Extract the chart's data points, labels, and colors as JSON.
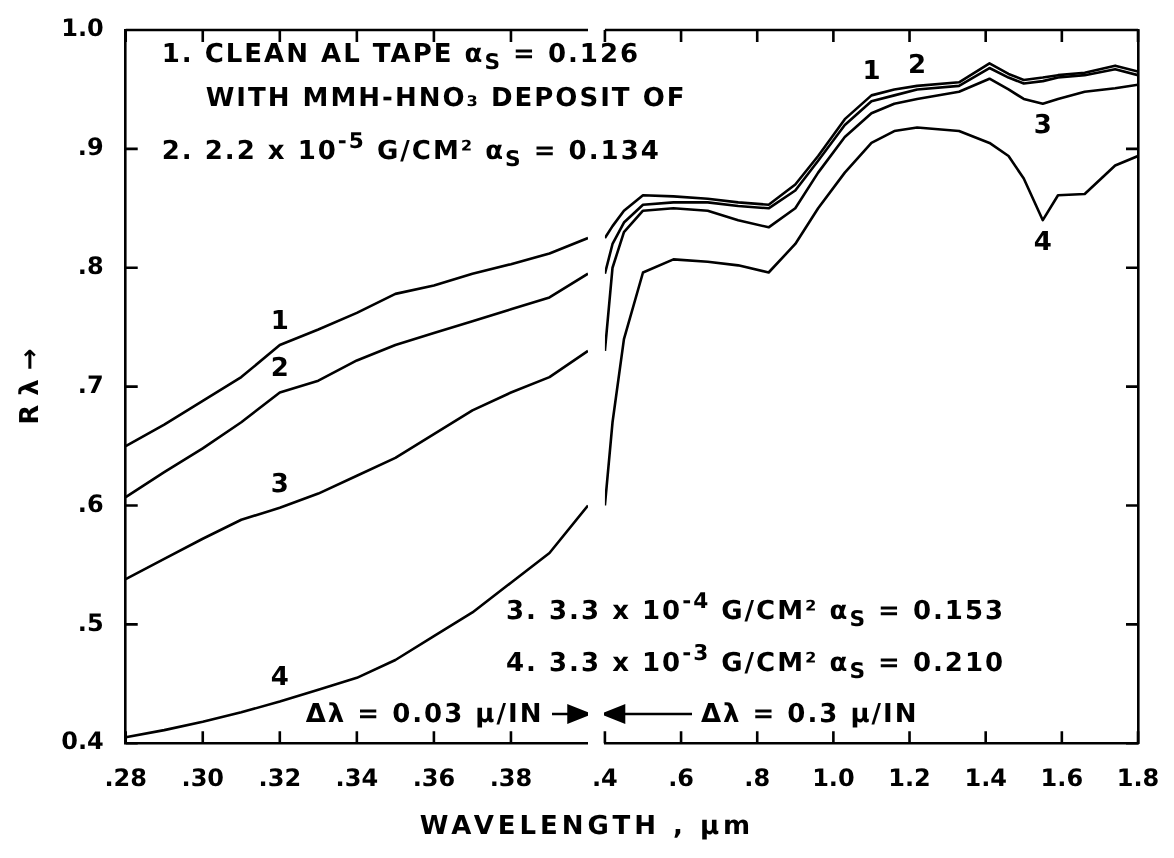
{
  "chart_data": [
    {
      "type": "line",
      "xlabel": "WAVELENGTH , μm",
      "ylabel": "R λ →",
      "x": [
        0.28,
        0.29,
        0.3,
        0.31,
        0.32,
        0.33,
        0.34,
        0.35,
        0.36,
        0.37,
        0.38,
        0.39,
        0.4
      ],
      "series": [
        {
          "name": "1",
          "color": "#000000",
          "values": [
            0.65,
            0.668,
            0.688,
            0.708,
            0.735,
            0.748,
            0.762,
            0.778,
            0.785,
            0.795,
            0.803,
            0.812,
            0.825
          ]
        },
        {
          "name": "2",
          "color": "#000000",
          "values": [
            0.607,
            0.628,
            0.648,
            0.67,
            0.695,
            0.705,
            0.722,
            0.735,
            0.745,
            0.755,
            0.765,
            0.775,
            0.795
          ]
        },
        {
          "name": "3",
          "color": "#000000",
          "values": [
            0.538,
            0.555,
            0.572,
            0.588,
            0.598,
            0.61,
            0.625,
            0.64,
            0.66,
            0.68,
            0.695,
            0.708,
            0.73
          ]
        },
        {
          "name": "4",
          "color": "#000000",
          "values": [
            0.405,
            0.411,
            0.418,
            0.426,
            0.435,
            0.445,
            0.455,
            0.47,
            0.49,
            0.51,
            0.535,
            0.56,
            0.6
          ]
        }
      ],
      "xlim": [
        0.28,
        0.4
      ],
      "xticks": [
        {
          "value": 0.28,
          "label": ".28"
        },
        {
          "value": 0.3,
          "label": ".30"
        },
        {
          "value": 0.32,
          "label": ".32"
        },
        {
          "value": 0.34,
          "label": ".34"
        },
        {
          "value": 0.36,
          "label": ".36"
        },
        {
          "value": 0.38,
          "label": ".38"
        }
      ],
      "ylim": [
        0.4,
        1.0
      ],
      "yticks": [
        {
          "value": 0.4,
          "label": "0.4"
        },
        {
          "value": 0.5,
          "label": ".5"
        },
        {
          "value": 0.6,
          "label": ".6"
        },
        {
          "value": 0.7,
          "label": ".7"
        },
        {
          "value": 0.8,
          "label": ".8"
        },
        {
          "value": 0.9,
          "label": ".9"
        },
        {
          "value": 1.0,
          "label": "1.0"
        }
      ],
      "annotations": [
        "1. CLEAN AL TAPE α$_{S}$ = 0.126",
        "WITH MMH-HNO₃ DEPOSIT OF",
        "2. 2.2 x 10$^{-5}$ G/CM² α$_{S}$ = 0.134",
        "Δλ = 0.03 μ/IN"
      ]
    },
    {
      "type": "line",
      "tick_labels": "x",
      "x": [
        0.4,
        0.42,
        0.45,
        0.5,
        0.58,
        0.67,
        0.75,
        0.83,
        0.9,
        0.96,
        1.03,
        1.1,
        1.16,
        1.22,
        1.33,
        1.41,
        1.46,
        1.5,
        1.55,
        1.59,
        1.66,
        1.74,
        1.8
      ],
      "series": [
        {
          "name": "1",
          "color": "#000000",
          "values": [
            0.825,
            0.835,
            0.848,
            0.861,
            0.86,
            0.858,
            0.855,
            0.853,
            0.87,
            0.894,
            0.925,
            0.945,
            0.95,
            0.953,
            0.956,
            0.972,
            0.963,
            0.958,
            0.96,
            0.962,
            0.964,
            0.97,
            0.965
          ]
        },
        {
          "name": "2",
          "color": "#000000",
          "values": [
            0.795,
            0.82,
            0.838,
            0.853,
            0.855,
            0.855,
            0.852,
            0.85,
            0.865,
            0.89,
            0.92,
            0.94,
            0.945,
            0.95,
            0.953,
            0.968,
            0.96,
            0.955,
            0.957,
            0.96,
            0.962,
            0.967,
            0.962
          ]
        },
        {
          "name": "3",
          "color": "#000000",
          "values": [
            0.73,
            0.8,
            0.83,
            0.848,
            0.85,
            0.848,
            0.84,
            0.834,
            0.85,
            0.88,
            0.91,
            0.93,
            0.938,
            0.942,
            0.948,
            0.959,
            0.95,
            0.942,
            0.938,
            0.942,
            0.948,
            0.951,
            0.954
          ]
        },
        {
          "name": "4",
          "color": "#000000",
          "values": [
            0.6,
            0.67,
            0.74,
            0.796,
            0.807,
            0.805,
            0.802,
            0.796,
            0.82,
            0.85,
            0.88,
            0.905,
            0.915,
            0.918,
            0.915,
            0.905,
            0.894,
            0.875,
            0.84,
            0.861,
            0.862,
            0.886,
            0.894
          ]
        }
      ],
      "xlim": [
        0.4,
        1.8
      ],
      "xticks": [
        {
          "value": 0.4,
          "label": ".4"
        },
        {
          "value": 0.6,
          "label": ".6"
        },
        {
          "value": 0.8,
          "label": ".8"
        },
        {
          "value": 1.0,
          "label": "1.0"
        },
        {
          "value": 1.2,
          "label": "1.2"
        },
        {
          "value": 1.4,
          "label": "1.4"
        },
        {
          "value": 1.6,
          "label": "1.6"
        },
        {
          "value": 1.8,
          "label": "1.8"
        }
      ],
      "ylim": [
        0.4,
        1.0
      ],
      "yticks": [
        {
          "value": 0.4,
          "label": null
        },
        {
          "value": 0.5,
          "label": null
        },
        {
          "value": 0.6,
          "label": null
        },
        {
          "value": 0.7,
          "label": null
        },
        {
          "value": 0.8,
          "label": null
        },
        {
          "value": 0.9,
          "label": null
        },
        {
          "value": 1.0,
          "label": null
        }
      ],
      "annotations": [
        "3. 3.3 x 10$^{-4}$ G/CM² α$_{S}$ = 0.153",
        "4. 3.3 x 10$^{-3}$ G/CM² α$_{S}$ = 0.210",
        "Δλ = 0.3 μ/IN"
      ]
    }
  ]
}
